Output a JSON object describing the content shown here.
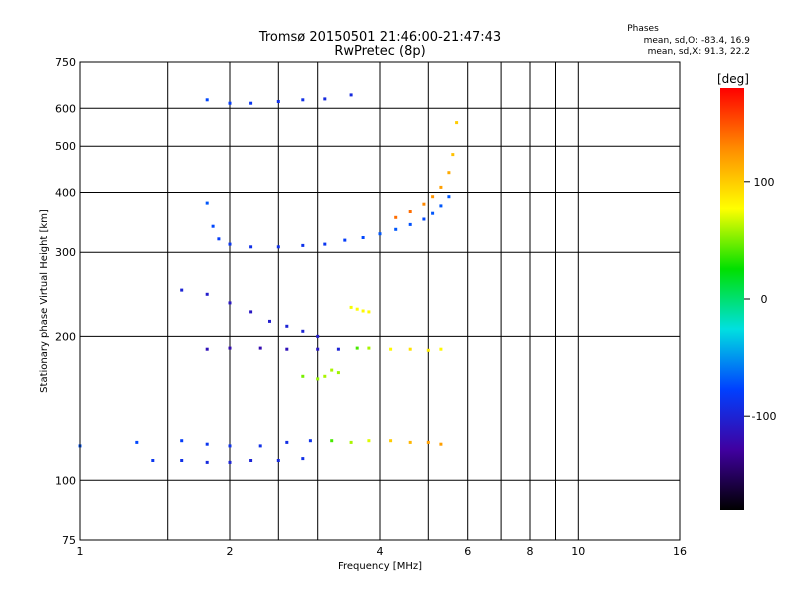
{
  "chart_data": {
    "type": "scatter",
    "title": "Tromsø 20150501 21:46:00-21:47:43",
    "subtitle": "RwPretec (8p)",
    "xlabel": "Frequency [MHz]",
    "ylabel": "Stationary phase Virtual Height [km]",
    "x_scale": "log",
    "y_scale": "log",
    "xlim": [
      1,
      16
    ],
    "ylim": [
      75,
      750
    ],
    "x_ticks": [
      1,
      2,
      4,
      6,
      8,
      10,
      16
    ],
    "x_gridlines": [
      1.5,
      2,
      2.5,
      3,
      4,
      5,
      6,
      7,
      8,
      9,
      10
    ],
    "y_ticks": [
      75,
      100,
      200,
      300,
      400,
      500,
      600,
      750
    ],
    "grid": true,
    "phase_stats": {
      "heading": "Phases",
      "line_o": "mean, sd,O: -83.4, 16.9",
      "line_x": "mean, sd,X:  91.3, 22.2"
    },
    "colorbar": {
      "label": "[deg]",
      "ticks": [
        100,
        0,
        -100
      ],
      "range": [
        -180,
        180
      ],
      "colors": [
        "#ff0000",
        "#ff8c00",
        "#ffff00",
        "#00e000",
        "#00e0e0",
        "#0040ff",
        "#4000a0",
        "#000000"
      ]
    },
    "traces": [
      {
        "name": "",
        "f": [
          1.0,
          1.3,
          1.6,
          1.8,
          2.0,
          2.3,
          2.6,
          2.9,
          3.2,
          3.5,
          3.8,
          4.2,
          4.6,
          5.0,
          5.3
        ],
        "h": [
          118,
          120,
          121,
          119,
          118,
          118,
          120,
          121,
          121,
          120,
          121,
          121,
          120,
          120,
          119
        ],
        "phase": [
          -70,
          -75,
          -80,
          -85,
          -88,
          -90,
          -92,
          -88,
          40,
          60,
          70,
          100,
          110,
          120,
          120
        ]
      },
      {
        "name": "",
        "f": [
          1.4,
          1.6,
          1.8,
          2.0,
          2.2,
          2.5,
          2.8
        ],
        "h": [
          110,
          110,
          109,
          109,
          110,
          110,
          111
        ],
        "phase": [
          -85,
          -90,
          -95,
          -100,
          -100,
          -95,
          -90
        ]
      },
      {
        "name": "",
        "f": [
          1.8,
          2.0,
          2.3,
          2.6,
          3.0,
          3.3,
          3.6,
          3.8,
          4.2,
          4.6,
          5.0,
          5.3
        ],
        "h": [
          188,
          189,
          189,
          188,
          188,
          188,
          189,
          189,
          188,
          188,
          187,
          188
        ],
        "phase": [
          -115,
          -120,
          -120,
          -115,
          -110,
          -100,
          40,
          60,
          80,
          90,
          85,
          80
        ]
      },
      {
        "name": "",
        "f": [
          1.8,
          1.85,
          1.9,
          2.0,
          2.2,
          2.5,
          2.8,
          3.1,
          3.4,
          3.7,
          4.0,
          4.3,
          4.6,
          4.9,
          5.1,
          5.3,
          5.5
        ],
        "h": [
          380,
          340,
          320,
          312,
          308,
          308,
          310,
          312,
          318,
          322,
          328,
          335,
          343,
          352,
          362,
          375,
          392
        ],
        "phase": [
          -70,
          -75,
          -80,
          -85,
          -90,
          -90,
          -88,
          -85,
          -80,
          -75,
          -70,
          -70,
          -72,
          -75,
          -70,
          -70,
          -70
        ]
      },
      {
        "name": "",
        "f": [
          4.3,
          4.6,
          4.9,
          5.1,
          5.3,
          5.5,
          5.6,
          5.7
        ],
        "h": [
          355,
          365,
          378,
          392,
          410,
          440,
          480,
          560
        ],
        "phase": [
          140,
          140,
          130,
          125,
          120,
          115,
          105,
          100
        ]
      },
      {
        "name": "",
        "f": [
          1.8,
          2.0,
          2.2,
          2.5,
          2.8,
          3.1,
          3.5
        ],
        "h": [
          625,
          615,
          615,
          620,
          625,
          628,
          640
        ],
        "phase": [
          -75,
          -80,
          -85,
          -90,
          -90,
          -95,
          -95
        ]
      },
      {
        "name": "",
        "f": [
          2.8,
          3.0,
          3.1,
          3.2,
          3.3
        ],
        "h": [
          165,
          163,
          165,
          170,
          168
        ],
        "phase": [
          50,
          55,
          60,
          60,
          58
        ]
      },
      {
        "name": "",
        "f": [
          3.5,
          3.6,
          3.7,
          3.8
        ],
        "h": [
          230,
          228,
          226,
          225
        ],
        "phase": [
          75,
          78,
          80,
          80
        ]
      },
      {
        "name": "",
        "f": [
          1.6,
          1.8,
          2.0,
          2.2,
          2.4,
          2.6,
          2.8,
          3.0
        ],
        "h": [
          250,
          245,
          235,
          225,
          215,
          210,
          205,
          200
        ],
        "phase": [
          -100,
          -105,
          -110,
          -110,
          -105,
          -100,
          -100,
          -105
        ]
      }
    ]
  }
}
